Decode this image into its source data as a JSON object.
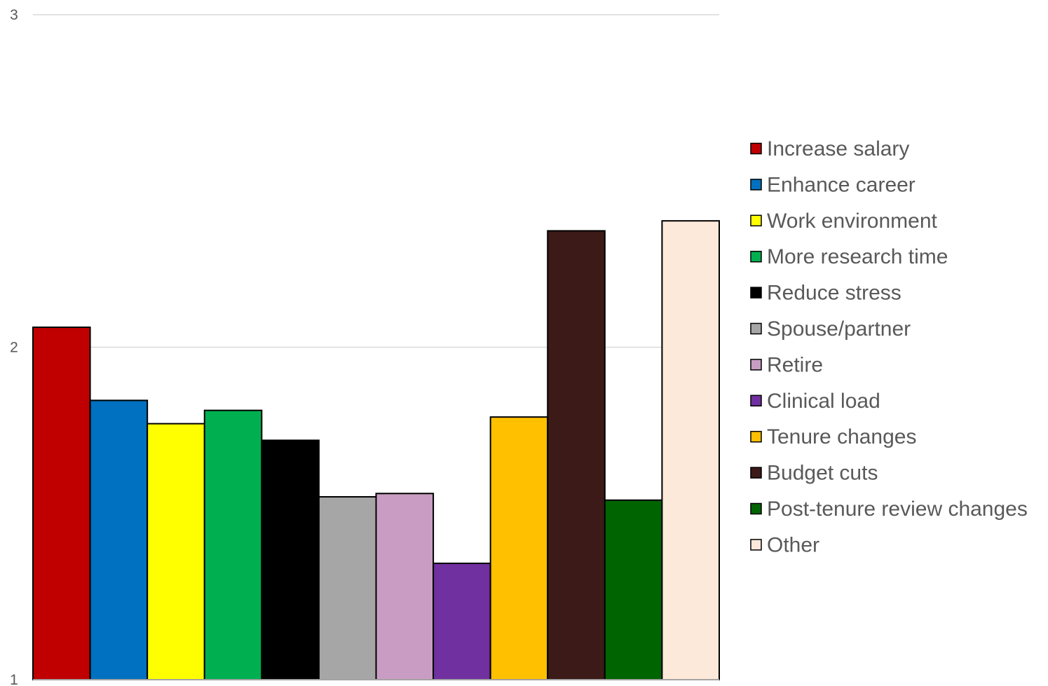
{
  "chart_data": {
    "type": "bar",
    "title": "",
    "xlabel": "",
    "ylabel": "",
    "ylim": [
      1,
      3
    ],
    "yticks": [
      1,
      2,
      3
    ],
    "grid": true,
    "legend_position": "right",
    "categories": [
      "Increase salary",
      "Enhance career",
      "Work environment",
      "More research time",
      "Reduce stress",
      "Spouse/partner",
      "Retire",
      "Clinical load",
      "Tenure changes",
      "Budget cuts",
      "Post-tenure review changes",
      "Other"
    ],
    "values": [
      2.06,
      1.84,
      1.77,
      1.81,
      1.72,
      1.55,
      1.56,
      1.35,
      1.79,
      2.35,
      1.54,
      2.38
    ],
    "colors": [
      "#C00000",
      "#0070C0",
      "#FFFF00",
      "#00B050",
      "#000000",
      "#A6A6A6",
      "#C99DC3",
      "#7030A0",
      "#FFC000",
      "#3B1A17",
      "#006400",
      "#FDE9DA"
    ]
  }
}
